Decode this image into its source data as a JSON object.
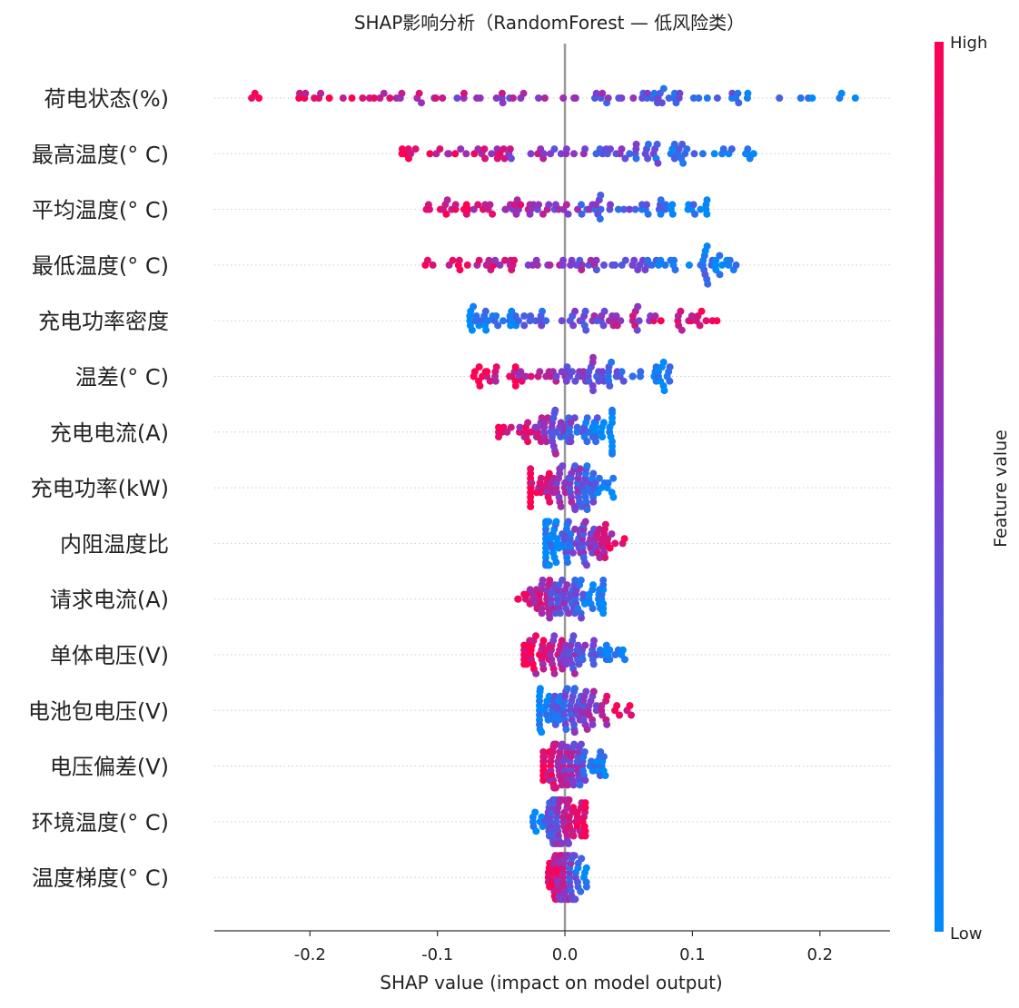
{
  "chart_data": {
    "type": "scatter",
    "subtype": "shap-beeswarm",
    "title": "SHAP影响分析（RandomForest — 低风险类）",
    "xlabel": "SHAP value (impact on model output)",
    "xlim": [
      -0.275,
      0.255
    ],
    "xticks": [
      -0.2,
      -0.1,
      0.0,
      0.1,
      0.2
    ],
    "xtick_labels": [
      "-0.2",
      "-0.1",
      "0.0",
      "0.1",
      "0.2"
    ],
    "colorbar": {
      "label": "Feature value",
      "high_label": "High",
      "low_label": "Low",
      "high_color": "#ff0052",
      "mid_color": "#7b3fd1",
      "low_color": "#008bfb"
    },
    "features": [
      {
        "name": "荷电状态(%)",
        "shap_range": [
          -0.25,
          0.23
        ],
        "trend": "high_negative"
      },
      {
        "name": "最高温度(° C)",
        "shap_range": [
          -0.135,
          0.15
        ],
        "trend": "high_negative"
      },
      {
        "name": "平均温度(° C)",
        "shap_range": [
          -0.11,
          0.12
        ],
        "trend": "high_negative"
      },
      {
        "name": "最低温度(° C)",
        "shap_range": [
          -0.11,
          0.137
        ],
        "trend": "high_negative"
      },
      {
        "name": "充电功率密度",
        "shap_range": [
          -0.077,
          0.12
        ],
        "trend": "high_positive"
      },
      {
        "name": "温差(° C)",
        "shap_range": [
          -0.072,
          0.087
        ],
        "trend": "high_negative"
      },
      {
        "name": "充电电流(A)",
        "shap_range": [
          -0.052,
          0.037
        ],
        "trend": "high_negative"
      },
      {
        "name": "充电功率(kW)",
        "shap_range": [
          -0.027,
          0.038
        ],
        "trend": "high_negative"
      },
      {
        "name": "内阻温度比",
        "shap_range": [
          -0.015,
          0.047
        ],
        "trend": "high_positive"
      },
      {
        "name": "请求电流(A)",
        "shap_range": [
          -0.04,
          0.03
        ],
        "trend": "high_negative"
      },
      {
        "name": "单体电压(V)",
        "shap_range": [
          -0.032,
          0.047
        ],
        "trend": "high_negative"
      },
      {
        "name": "电池包电压(V)",
        "shap_range": [
          -0.02,
          0.052
        ],
        "trend": "high_positive"
      },
      {
        "name": "电压偏差(V)",
        "shap_range": [
          -0.017,
          0.032
        ],
        "trend": "high_negative"
      },
      {
        "name": "环境温度(° C)",
        "shap_range": [
          -0.025,
          0.016
        ],
        "trend": "high_positive"
      },
      {
        "name": "温度梯度(° C)",
        "shap_range": [
          -0.013,
          0.017
        ],
        "trend": "high_negative"
      }
    ],
    "points_per_feature": 90
  }
}
